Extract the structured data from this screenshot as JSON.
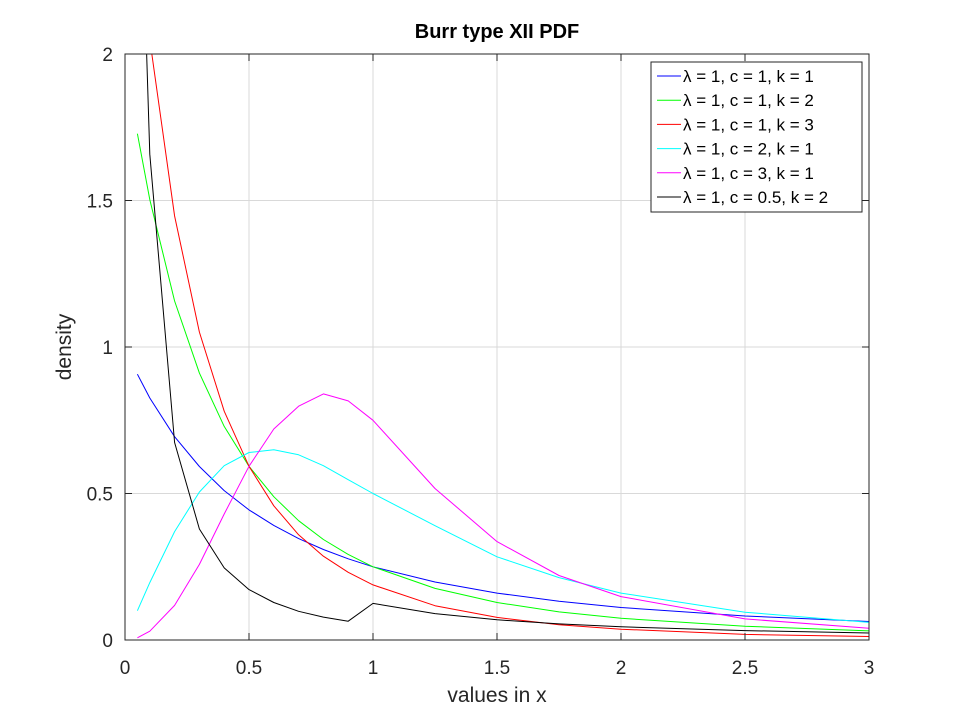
{
  "chart_data": {
    "type": "line",
    "title": "Burr type XII PDF",
    "xlabel": "values in x",
    "ylabel": "density",
    "xlim": [
      0,
      3
    ],
    "ylim": [
      0,
      2
    ],
    "xticks": [
      0,
      0.5,
      1,
      1.5,
      2,
      2.5,
      3
    ],
    "xtick_labels": [
      "0",
      "0.5",
      "1",
      "1.5",
      "2",
      "2.5",
      "3"
    ],
    "yticks": [
      0,
      0.5,
      1,
      1.5,
      2
    ],
    "ytick_labels": [
      "0",
      "0.5",
      "1",
      "1.5",
      "2"
    ],
    "grid": true,
    "legend_position": "top-right",
    "x": [
      0.05,
      0.1,
      0.2,
      0.3,
      0.4,
      0.5,
      0.6,
      0.7,
      0.8,
      0.9,
      1.0,
      1.25,
      1.5,
      1.75,
      2.0,
      2.5,
      3.0
    ],
    "series": [
      {
        "name": "λ = 1, c = 1, k = 1",
        "color": "#0000ff",
        "values": [
          0.907,
          0.826,
          0.694,
          0.592,
          0.51,
          0.444,
          0.391,
          0.346,
          0.309,
          0.277,
          0.25,
          0.198,
          0.16,
          0.132,
          0.111,
          0.082,
          0.063
        ]
      },
      {
        "name": "λ = 1, c = 1, k = 2",
        "color": "#00ff00",
        "values": [
          1.728,
          1.503,
          1.157,
          0.911,
          0.729,
          0.593,
          0.489,
          0.407,
          0.343,
          0.292,
          0.25,
          0.176,
          0.128,
          0.096,
          0.074,
          0.047,
          0.031
        ]
      },
      {
        "name": "λ = 1, c = 1, k = 3",
        "color": "#ff0000",
        "values": [
          2.468,
          2.049,
          1.447,
          1.051,
          0.781,
          0.593,
          0.458,
          0.359,
          0.286,
          0.231,
          0.188,
          0.117,
          0.077,
          0.052,
          0.037,
          0.019,
          0.012
        ]
      },
      {
        "name": "λ = 1, c = 2, k = 1",
        "color": "#00ffff",
        "values": [
          0.1,
          0.196,
          0.37,
          0.505,
          0.595,
          0.64,
          0.649,
          0.632,
          0.595,
          0.547,
          0.5,
          0.39,
          0.284,
          0.213,
          0.16,
          0.095,
          0.06
        ]
      },
      {
        "name": "λ = 1, c = 3, k = 1",
        "color": "#ff00ff",
        "values": [
          0.0075,
          0.03,
          0.118,
          0.258,
          0.43,
          0.593,
          0.72,
          0.798,
          0.84,
          0.816,
          0.75,
          0.517,
          0.336,
          0.22,
          0.148,
          0.072,
          0.04
        ]
      },
      {
        "name": "λ = 1, c = 0.5, k = 2",
        "color": "#000000",
        "values": [
          3.0,
          1.658,
          0.674,
          0.379,
          0.246,
          0.172,
          0.128,
          0.098,
          0.078,
          0.064,
          0.125,
          0.09,
          0.069,
          0.055,
          0.045,
          0.032,
          0.024
        ]
      }
    ]
  }
}
